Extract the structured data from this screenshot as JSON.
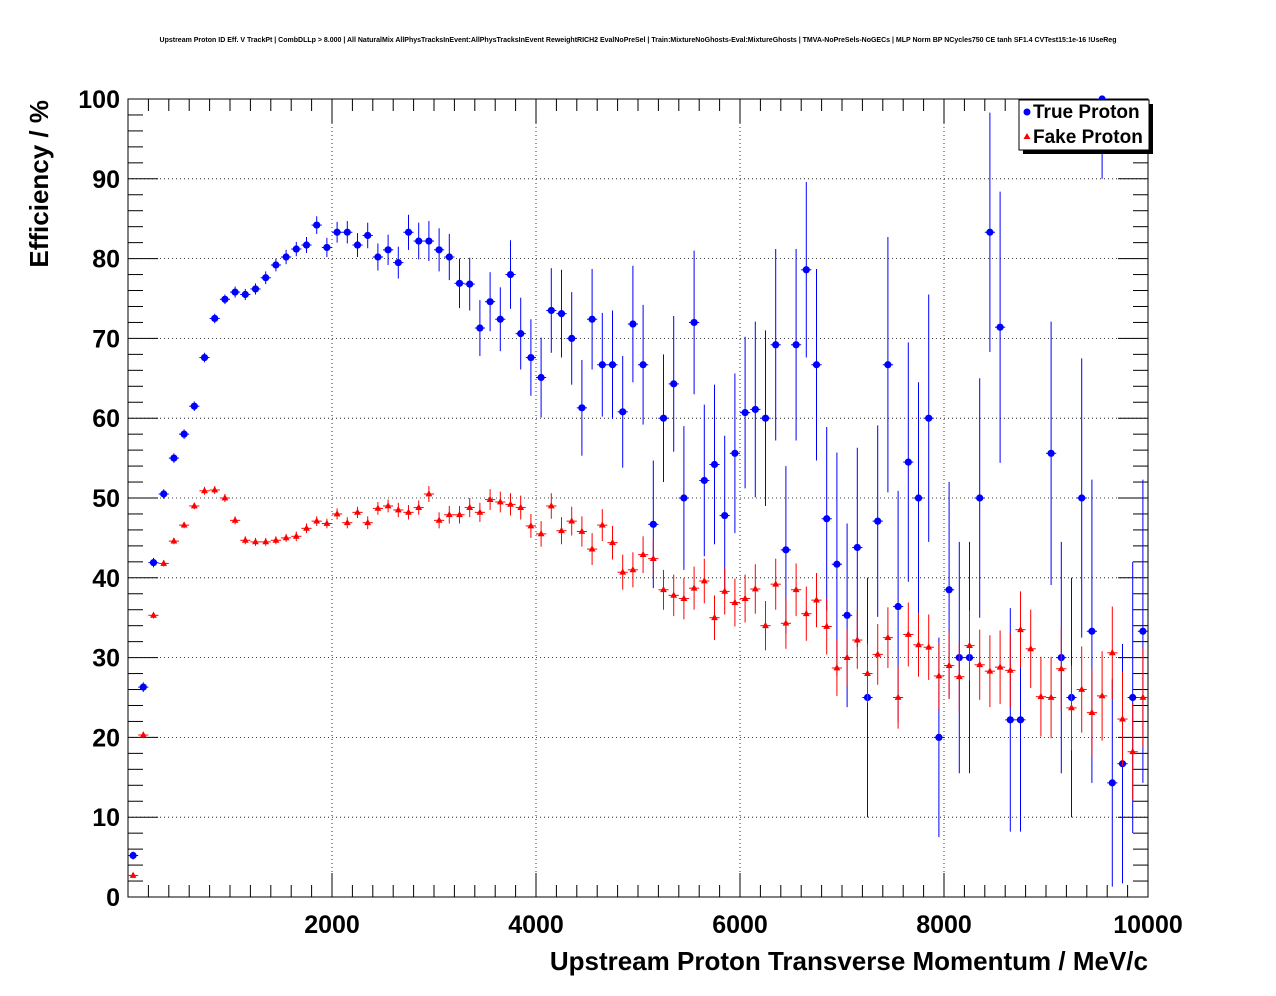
{
  "chart_data": {
    "type": "scatter",
    "title": "Upstream Proton ID Eff. V TrackPt | CombDLLp > 8.000 | All NaturalMix AllPhysTracksInEvent:AllPhysTracksInEvent ReweightRICH2 EvalNoPreSel | Train:MixtureNoGhosts-Eval:MixtureGhosts | TMVA-NoPreSels-NoGECs | MLP Norm BP NCycles750 CE tanh SF1.4 CVTest15:1e-16 !UseReg",
    "xlabel": "Upstream Proton Transverse Momentum / MeV/c",
    "ylabel": "Efficiency / %",
    "xlim": [
      0,
      10000
    ],
    "ylim": [
      0,
      100
    ],
    "xticks": [
      "2000",
      "4000",
      "6000",
      "8000",
      "10000"
    ],
    "yticks": [
      "0",
      "10",
      "20",
      "30",
      "40",
      "50",
      "60",
      "70",
      "80",
      "90",
      "100"
    ],
    "grid": true,
    "legend_position": "top-right",
    "series": [
      {
        "name": "True Proton",
        "color": "#0000ff",
        "marker": "circle",
        "points": [
          [
            50,
            5.2,
            0.5
          ],
          [
            150,
            26.3,
            0.6
          ],
          [
            250,
            41.9,
            0.6
          ],
          [
            350,
            50.5,
            0.6
          ],
          [
            450,
            55.0,
            0.6
          ],
          [
            550,
            58.0,
            0.6
          ],
          [
            650,
            61.5,
            0.6
          ],
          [
            750,
            67.6,
            0.6
          ],
          [
            850,
            72.5,
            0.6
          ],
          [
            950,
            74.9,
            0.6
          ],
          [
            1050,
            75.8,
            0.7
          ],
          [
            1150,
            75.5,
            0.7
          ],
          [
            1250,
            76.2,
            0.7
          ],
          [
            1350,
            77.6,
            0.8
          ],
          [
            1450,
            79.2,
            0.8
          ],
          [
            1550,
            80.2,
            0.9
          ],
          [
            1650,
            81.2,
            0.9
          ],
          [
            1750,
            81.7,
            1.0
          ],
          [
            1850,
            84.2,
            1.1
          ],
          [
            1950,
            81.4,
            1.2
          ],
          [
            2050,
            83.3,
            1.3
          ],
          [
            2150,
            83.3,
            1.4
          ],
          [
            2250,
            81.7,
            1.5
          ],
          [
            2350,
            82.9,
            1.6
          ],
          [
            2450,
            80.2,
            1.7
          ],
          [
            2550,
            81.1,
            1.9
          ],
          [
            2650,
            79.5,
            2.0
          ],
          [
            2750,
            83.3,
            2.2
          ],
          [
            2850,
            82.2,
            2.3
          ],
          [
            2950,
            82.2,
            2.5
          ],
          [
            3050,
            81.1,
            2.7
          ],
          [
            3150,
            80.2,
            2.9
          ],
          [
            3250,
            76.9,
            3.1
          ],
          [
            3350,
            76.8,
            3.3
          ],
          [
            3450,
            71.3,
            3.5
          ],
          [
            3550,
            74.6,
            3.7
          ],
          [
            3650,
            72.4,
            4.0
          ],
          [
            3750,
            78.0,
            4.3
          ],
          [
            3850,
            70.6,
            4.5
          ],
          [
            3950,
            67.6,
            4.8
          ],
          [
            4050,
            65.1,
            5.0
          ],
          [
            4150,
            73.5,
            5.3
          ],
          [
            4250,
            73.1,
            5.5
          ],
          [
            4350,
            70.0,
            5.8
          ],
          [
            4450,
            61.3,
            6.0
          ],
          [
            4550,
            72.4,
            6.3
          ],
          [
            4650,
            66.7,
            6.5
          ],
          [
            4750,
            66.7,
            6.8
          ],
          [
            4850,
            60.8,
            7.0
          ],
          [
            4950,
            71.8,
            7.3
          ],
          [
            5050,
            66.7,
            7.5
          ],
          [
            5150,
            46.7,
            8.0
          ],
          [
            5250,
            60.0,
            8.0
          ],
          [
            5350,
            64.3,
            8.5
          ],
          [
            5450,
            50.0,
            9.0
          ],
          [
            5550,
            72.0,
            9.0
          ],
          [
            5650,
            52.2,
            9.5
          ],
          [
            5750,
            54.2,
            10.0
          ],
          [
            5850,
            47.8,
            10.0
          ],
          [
            5950,
            55.6,
            10.0
          ],
          [
            6050,
            60.7,
            9.5
          ],
          [
            6150,
            61.1,
            11.0
          ],
          [
            6250,
            60.0,
            11.0
          ],
          [
            6350,
            69.2,
            12.0
          ],
          [
            6450,
            43.5,
            10.5
          ],
          [
            6550,
            69.2,
            12.0
          ],
          [
            6650,
            78.6,
            11.0
          ],
          [
            6750,
            66.7,
            12.0
          ],
          [
            6850,
            47.4,
            11.5
          ],
          [
            6950,
            41.7,
            14.0
          ],
          [
            7050,
            35.3,
            11.5
          ],
          [
            7150,
            43.8,
            12.5
          ],
          [
            7250,
            25.0,
            15.0
          ],
          [
            7350,
            47.1,
            12.0
          ],
          [
            7450,
            66.7,
            16.0
          ],
          [
            7550,
            36.4,
            14.5
          ],
          [
            7650,
            54.5,
            15.0
          ],
          [
            7750,
            50.0,
            14.5
          ],
          [
            7850,
            60.0,
            15.5
          ],
          [
            7950,
            20.0,
            12.5
          ],
          [
            8050,
            38.5,
            13.5
          ],
          [
            8150,
            30.0,
            14.5
          ],
          [
            8250,
            30.0,
            14.5
          ],
          [
            8350,
            50.0,
            15.0
          ],
          [
            8450,
            83.3,
            15.0
          ],
          [
            8550,
            71.4,
            17.0
          ],
          [
            8650,
            22.2,
            14.0
          ],
          [
            8750,
            22.2,
            14.0
          ],
          [
            9050,
            55.6,
            16.5
          ],
          [
            9150,
            30.0,
            14.5
          ],
          [
            9250,
            25.0,
            15.0
          ],
          [
            9350,
            50.0,
            17.5
          ],
          [
            9450,
            33.3,
            19.0
          ],
          [
            9550,
            100.0,
            10.0
          ],
          [
            9650,
            14.3,
            13.0
          ],
          [
            9750,
            16.7,
            15.0
          ],
          [
            9850,
            25.0,
            17.0
          ],
          [
            9950,
            33.3,
            19.0
          ]
        ]
      },
      {
        "name": "Fake Proton",
        "color": "#ff0000",
        "marker": "triangle",
        "points": [
          [
            50,
            2.7,
            0.3
          ],
          [
            150,
            20.3,
            0.4
          ],
          [
            250,
            35.3,
            0.4
          ],
          [
            350,
            41.8,
            0.4
          ],
          [
            450,
            44.6,
            0.4
          ],
          [
            550,
            46.6,
            0.4
          ],
          [
            650,
            49.0,
            0.4
          ],
          [
            750,
            50.9,
            0.5
          ],
          [
            850,
            51.0,
            0.5
          ],
          [
            950,
            50.0,
            0.5
          ],
          [
            1050,
            47.2,
            0.5
          ],
          [
            1150,
            44.7,
            0.5
          ],
          [
            1250,
            44.5,
            0.5
          ],
          [
            1350,
            44.5,
            0.5
          ],
          [
            1450,
            44.7,
            0.5
          ],
          [
            1550,
            45.0,
            0.5
          ],
          [
            1650,
            45.2,
            0.6
          ],
          [
            1750,
            46.2,
            0.6
          ],
          [
            1850,
            47.1,
            0.6
          ],
          [
            1950,
            46.8,
            0.6
          ],
          [
            2050,
            48.0,
            0.7
          ],
          [
            2150,
            46.9,
            0.7
          ],
          [
            2250,
            48.2,
            0.7
          ],
          [
            2350,
            46.9,
            0.8
          ],
          [
            2450,
            48.7,
            0.8
          ],
          [
            2550,
            49.0,
            0.8
          ],
          [
            2650,
            48.5,
            0.9
          ],
          [
            2750,
            48.2,
            0.9
          ],
          [
            2850,
            48.8,
            0.9
          ],
          [
            2950,
            50.5,
            1.0
          ],
          [
            3050,
            47.2,
            1.0
          ],
          [
            3150,
            47.9,
            1.1
          ],
          [
            3250,
            47.9,
            1.1
          ],
          [
            3350,
            48.8,
            1.2
          ],
          [
            3450,
            48.2,
            1.2
          ],
          [
            3550,
            49.8,
            1.3
          ],
          [
            3650,
            49.5,
            1.3
          ],
          [
            3750,
            49.2,
            1.4
          ],
          [
            3850,
            48.8,
            1.5
          ],
          [
            3950,
            46.5,
            1.5
          ],
          [
            4050,
            45.5,
            1.6
          ],
          [
            4150,
            49.0,
            1.6
          ],
          [
            4250,
            45.9,
            1.7
          ],
          [
            4350,
            47.1,
            1.8
          ],
          [
            4450,
            45.8,
            1.9
          ],
          [
            4550,
            43.6,
            2.0
          ],
          [
            4650,
            46.6,
            2.0
          ],
          [
            4750,
            44.4,
            2.1
          ],
          [
            4850,
            40.7,
            2.2
          ],
          [
            4950,
            41.0,
            2.2
          ],
          [
            5050,
            42.9,
            2.3
          ],
          [
            5150,
            42.4,
            2.4
          ],
          [
            5250,
            38.5,
            2.5
          ],
          [
            5350,
            37.8,
            2.6
          ],
          [
            5450,
            37.4,
            2.6
          ],
          [
            5550,
            38.7,
            2.7
          ],
          [
            5650,
            39.6,
            2.8
          ],
          [
            5750,
            35.0,
            2.8
          ],
          [
            5850,
            38.3,
            2.9
          ],
          [
            5950,
            36.9,
            3.0
          ],
          [
            6050,
            37.4,
            3.0
          ],
          [
            6150,
            38.6,
            3.1
          ],
          [
            6250,
            34.0,
            3.1
          ],
          [
            6350,
            39.2,
            3.2
          ],
          [
            6450,
            34.3,
            3.2
          ],
          [
            6550,
            38.5,
            3.3
          ],
          [
            6650,
            35.5,
            3.4
          ],
          [
            6750,
            37.2,
            3.4
          ],
          [
            6850,
            33.9,
            3.5
          ],
          [
            6950,
            28.7,
            3.5
          ],
          [
            7050,
            30.0,
            3.6
          ],
          [
            7150,
            32.2,
            3.6
          ],
          [
            7250,
            28.0,
            3.7
          ],
          [
            7350,
            30.4,
            3.8
          ],
          [
            7450,
            32.5,
            3.8
          ],
          [
            7550,
            25.0,
            3.9
          ],
          [
            7650,
            32.9,
            4.0
          ],
          [
            7750,
            31.6,
            4.0
          ],
          [
            7850,
            31.3,
            4.1
          ],
          [
            7950,
            27.7,
            4.2
          ],
          [
            8050,
            29.0,
            4.2
          ],
          [
            8150,
            27.6,
            4.3
          ],
          [
            8250,
            31.5,
            4.4
          ],
          [
            8350,
            29.1,
            4.4
          ],
          [
            8450,
            28.3,
            4.5
          ],
          [
            8550,
            28.8,
            4.6
          ],
          [
            8650,
            28.4,
            4.7
          ],
          [
            8750,
            33.5,
            4.8
          ],
          [
            8850,
            31.1,
            4.9
          ],
          [
            8950,
            25.1,
            5.0
          ],
          [
            9050,
            25.0,
            5.1
          ],
          [
            9150,
            28.6,
            5.2
          ],
          [
            9250,
            23.7,
            5.3
          ],
          [
            9350,
            26.0,
            5.4
          ],
          [
            9450,
            23.1,
            5.5
          ],
          [
            9550,
            25.2,
            5.6
          ],
          [
            9650,
            30.6,
            5.8
          ],
          [
            9750,
            22.3,
            5.9
          ],
          [
            9850,
            18.2,
            6.1
          ],
          [
            9950,
            25.0,
            6.3
          ]
        ]
      }
    ]
  }
}
